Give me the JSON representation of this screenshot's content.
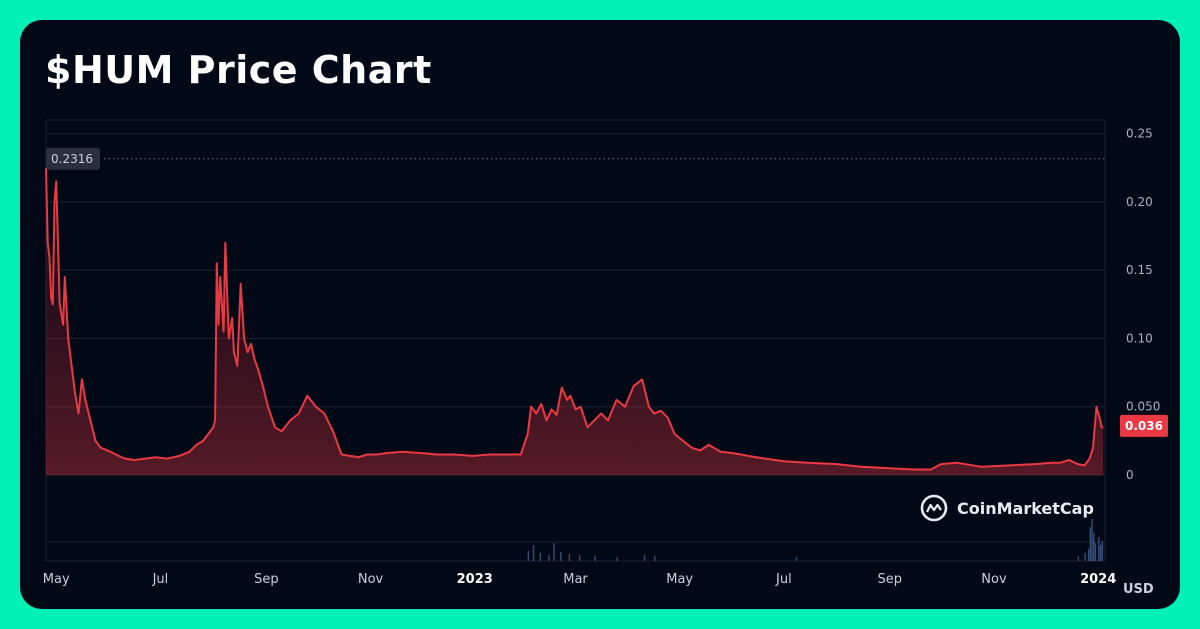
{
  "chart_data": {
    "type": "area",
    "title": "$HUM Price Chart",
    "unit": "USD",
    "ylim": [
      -0.063,
      0.26
    ],
    "yticks": [
      0,
      0.05,
      0.1,
      0.15,
      0.2,
      0.25
    ],
    "ytick_labels": [
      "0",
      "0.050",
      "0.10",
      "0.15",
      "0.20",
      "0.25"
    ],
    "xlim": [
      "2022-04-25",
      "2024-01-05"
    ],
    "xticks": [
      {
        "label": "May",
        "date": "2022-05-01",
        "bold": false
      },
      {
        "label": "Jul",
        "date": "2022-07-01",
        "bold": false
      },
      {
        "label": "Sep",
        "date": "2022-09-01",
        "bold": false
      },
      {
        "label": "Nov",
        "date": "2022-11-01",
        "bold": false
      },
      {
        "label": "2023",
        "date": "2023-01-01",
        "bold": true
      },
      {
        "label": "Mar",
        "date": "2023-03-01",
        "bold": false
      },
      {
        "label": "May",
        "date": "2023-05-01",
        "bold": false
      },
      {
        "label": "Jul",
        "date": "2023-07-01",
        "bold": false
      },
      {
        "label": "Sep",
        "date": "2023-09-01",
        "bold": false
      },
      {
        "label": "Nov",
        "date": "2023-11-01",
        "bold": false
      },
      {
        "label": "2024",
        "date": "2024-01-01",
        "bold": true
      }
    ],
    "grid": true,
    "high_label": "0.2316",
    "high_value": 0.2316,
    "current_label": "0.036",
    "current_value": 0.036,
    "line_color": "#ea3943",
    "series": [
      {
        "x": [
          "2022-04-25",
          "2022-04-26",
          "2022-04-27",
          "2022-04-28",
          "2022-04-29",
          "2022-04-30",
          "2022-05-01",
          "2022-05-03",
          "2022-05-05",
          "2022-05-06",
          "2022-05-08",
          "2022-05-10",
          "2022-05-12",
          "2022-05-14",
          "2022-05-16",
          "2022-05-18",
          "2022-05-20",
          "2022-05-22",
          "2022-05-24",
          "2022-05-27",
          "2022-05-31",
          "2022-06-05",
          "2022-06-10",
          "2022-06-16",
          "2022-06-22",
          "2022-06-28",
          "2022-07-05",
          "2022-07-12",
          "2022-07-18",
          "2022-07-22",
          "2022-07-26",
          "2022-07-29",
          "2022-08-01",
          "2022-08-02",
          "2022-08-03",
          "2022-08-04",
          "2022-08-05",
          "2022-08-07",
          "2022-08-08",
          "2022-08-10",
          "2022-08-12",
          "2022-08-13",
          "2022-08-15",
          "2022-08-17",
          "2022-08-19",
          "2022-08-21",
          "2022-08-23",
          "2022-08-25",
          "2022-08-27",
          "2022-08-30",
          "2022-09-02",
          "2022-09-06",
          "2022-09-10",
          "2022-09-15",
          "2022-09-20",
          "2022-09-25",
          "2022-09-30",
          "2022-10-05",
          "2022-10-10",
          "2022-10-15",
          "2022-10-20",
          "2022-10-25",
          "2022-10-30",
          "2022-11-03",
          "2022-11-05",
          "2022-11-10",
          "2022-11-20",
          "2022-12-01",
          "2022-12-10",
          "2022-12-20",
          "2022-12-31",
          "2023-01-10",
          "2023-01-20",
          "2023-01-28",
          "2023-02-01",
          "2023-02-03",
          "2023-02-06",
          "2023-02-09",
          "2023-02-12",
          "2023-02-15",
          "2023-02-18",
          "2023-02-21",
          "2023-02-24",
          "2023-02-26",
          "2023-03-01",
          "2023-03-04",
          "2023-03-08",
          "2023-03-12",
          "2023-03-16",
          "2023-03-20",
          "2023-03-25",
          "2023-03-30",
          "2023-04-04",
          "2023-04-09",
          "2023-04-13",
          "2023-04-16",
          "2023-04-20",
          "2023-04-24",
          "2023-04-28",
          "2023-05-03",
          "2023-05-08",
          "2023-05-13",
          "2023-05-18",
          "2023-05-25",
          "2023-06-01",
          "2023-06-06",
          "2023-06-10",
          "2023-06-15",
          "2023-06-20",
          "2023-07-01",
          "2023-07-15",
          "2023-08-01",
          "2023-08-15",
          "2023-09-01",
          "2023-09-15",
          "2023-09-25",
          "2023-10-01",
          "2023-10-10",
          "2023-10-25",
          "2023-11-10",
          "2023-11-25",
          "2023-12-05",
          "2023-12-10",
          "2023-12-15",
          "2023-12-20",
          "2023-12-24",
          "2023-12-27",
          "2023-12-29",
          "2023-12-31",
          "2024-01-02",
          "2024-01-03",
          "2024-01-04"
        ],
        "y": [
          0.225,
          0.17,
          0.16,
          0.13,
          0.125,
          0.2,
          0.215,
          0.125,
          0.11,
          0.145,
          0.1,
          0.08,
          0.06,
          0.045,
          0.07,
          0.055,
          0.045,
          0.035,
          0.025,
          0.02,
          0.018,
          0.015,
          0.012,
          0.011,
          0.012,
          0.013,
          0.012,
          0.014,
          0.017,
          0.022,
          0.025,
          0.03,
          0.035,
          0.04,
          0.155,
          0.11,
          0.145,
          0.105,
          0.17,
          0.1,
          0.115,
          0.09,
          0.08,
          0.14,
          0.1,
          0.09,
          0.096,
          0.085,
          0.078,
          0.065,
          0.05,
          0.035,
          0.032,
          0.04,
          0.045,
          0.058,
          0.05,
          0.045,
          0.032,
          0.015,
          0.014,
          0.013,
          0.015,
          0.015,
          0.015,
          0.016,
          0.017,
          0.016,
          0.015,
          0.015,
          0.014,
          0.015,
          0.015,
          0.015,
          0.03,
          0.05,
          0.045,
          0.052,
          0.04,
          0.048,
          0.044,
          0.064,
          0.055,
          0.058,
          0.048,
          0.05,
          0.035,
          0.04,
          0.045,
          0.04,
          0.055,
          0.05,
          0.065,
          0.07,
          0.05,
          0.045,
          0.047,
          0.042,
          0.03,
          0.025,
          0.02,
          0.018,
          0.022,
          0.017,
          0.016,
          0.015,
          0.014,
          0.013,
          0.012,
          0.01,
          0.009,
          0.008,
          0.006,
          0.005,
          0.004,
          0.004,
          0.008,
          0.009,
          0.006,
          0.007,
          0.008,
          0.009,
          0.009,
          0.011,
          0.008,
          0.007,
          0.012,
          0.02,
          0.05,
          0.041,
          0.035,
          0.035
        ]
      }
    ]
  },
  "brand": {
    "name": "CoinMarketCap",
    "icon": "coinmarketcap-logo-icon"
  }
}
